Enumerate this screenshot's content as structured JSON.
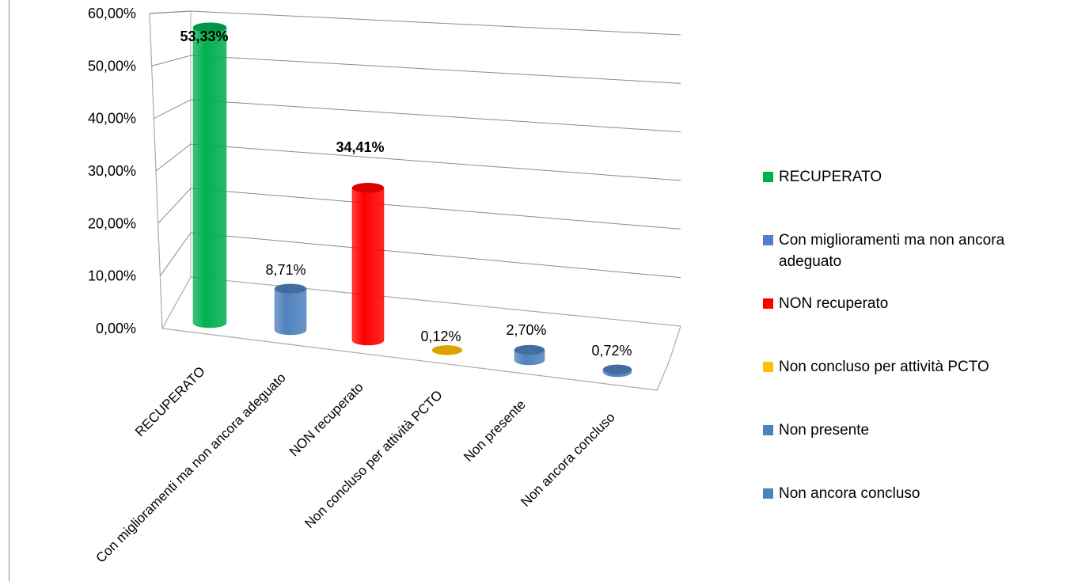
{
  "chart_data": {
    "type": "bar",
    "style": "3d-cylinder",
    "title": "",
    "xlabel": "",
    "ylabel": "",
    "ylim": [
      0,
      0.6
    ],
    "yticks": [
      "0,00%",
      "10,00%",
      "20,00%",
      "30,00%",
      "40,00%",
      "50,00%",
      "60,00%"
    ],
    "grid": true,
    "legend_position": "right",
    "categories": [
      "RECUPERATO",
      "Con miglioramenti ma non ancora adeguato",
      "NON recuperato",
      "Non concluso per attività PCTO",
      "Non presente",
      "Non ancora concluso"
    ],
    "values": [
      0.5333,
      0.0871,
      0.3441,
      0.0012,
      0.027,
      0.0072
    ],
    "data_labels": [
      "53,33%",
      "8,71%",
      "34,41%",
      "0,12%",
      "2,70%",
      "0,72%"
    ],
    "colors": [
      "#00b050",
      "#4f81bd",
      "#ff0000",
      "#ffc000",
      "#4f81bd",
      "#4f81bd"
    ],
    "legend": [
      "RECUPERATO",
      "Con miglioramenti ma non ancora adeguato",
      "NON recuperato",
      "Non concluso per attività PCTO",
      "Non presente",
      "Non ancora concluso"
    ]
  }
}
